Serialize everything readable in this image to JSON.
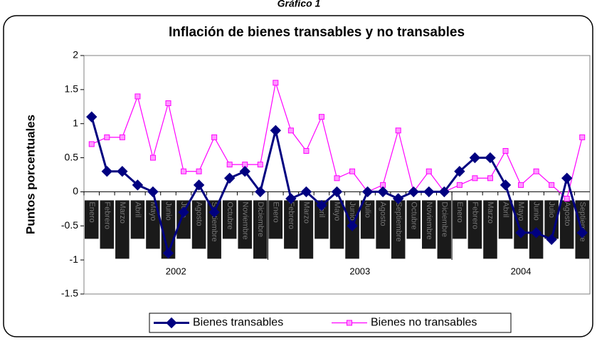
{
  "chart_data": {
    "type": "line",
    "caption": "Gráfico 1",
    "title": "Inflación de bienes transables y no transables",
    "y_label": "Puntos porcentuales",
    "categories": [
      "Enero",
      "Febrero",
      "Marzo",
      "Abril",
      "Mayo",
      "Junio",
      "Julio",
      "Agosto",
      "Septiembre",
      "Octubre",
      "Noviembre",
      "Diciembre",
      "Enero",
      "Febrero",
      "Marzo",
      "Abril",
      "Mayo",
      "Junio",
      "Julio",
      "Agosto",
      "Septiembre",
      "Octubre",
      "Noviembre",
      "Diciembre",
      "Enero",
      "Febrero",
      "Marzo",
      "Abril",
      "Mayo",
      "Junio",
      "Julio",
      "Agosto",
      "Septiembre"
    ],
    "groups": [
      {
        "label": "2002",
        "count": 12
      },
      {
        "label": "2003",
        "count": 12
      },
      {
        "label": "2004",
        "count": 9
      }
    ],
    "series": [
      {
        "name": "Bienes transables",
        "color": "#000080",
        "marker": "diamond",
        "values": [
          1.1,
          0.3,
          0.3,
          0.1,
          0,
          -0.9,
          -0.3,
          0.1,
          -0.3,
          0.2,
          0.3,
          0,
          0.9,
          -0.1,
          0,
          -0.2,
          0,
          -0.5,
          0,
          0,
          -0.1,
          0,
          0,
          0,
          0.3,
          0.5,
          0.5,
          0.1,
          -0.6,
          -0.6,
          -0.7,
          0.2,
          -0.6
        ]
      },
      {
        "name": "Bienes no transables",
        "color": "#ff00ff",
        "marker": "square",
        "values": [
          0.7,
          0.8,
          0.8,
          1.4,
          0.5,
          1.3,
          0.3,
          0.3,
          0.8,
          0.4,
          0.4,
          0.4,
          1.6,
          0.9,
          0.6,
          1.1,
          0.2,
          0.3,
          0,
          0.1,
          0.9,
          0,
          0.3,
          0,
          0.1,
          0.2,
          0.2,
          0.6,
          0.1,
          0.3,
          0.1,
          -0.1,
          0.8
        ]
      }
    ],
    "ylim": [
      -1.5,
      2
    ],
    "yticks": [
      -1.5,
      -1,
      -0.5,
      0,
      0.5,
      1,
      1.5,
      2
    ],
    "legend": "bottom"
  }
}
